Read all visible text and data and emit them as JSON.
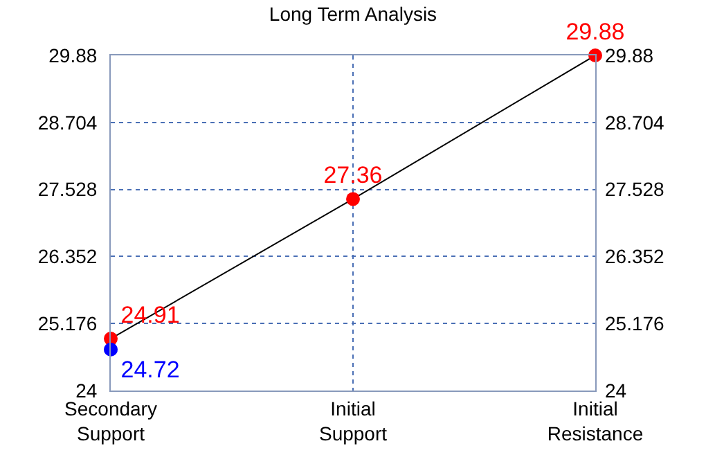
{
  "chart_data": {
    "type": "line",
    "title": "Long Term Analysis",
    "categories": [
      "Secondary Support",
      "Initial Support",
      "Initial Resistance"
    ],
    "series": [
      {
        "color": "#000000",
        "values": [
          24.91,
          27.36,
          29.88
        ],
        "marker": "none"
      },
      {
        "type": "scatter",
        "color": "#ff0000",
        "values": [
          24.91,
          27.36,
          29.88
        ],
        "marker": "circle",
        "value_labels": [
          "24.91",
          "27.36",
          "29.88"
        ]
      },
      {
        "type": "scatter",
        "color": "#0000ff",
        "values": [
          24.72,
          null,
          null
        ],
        "marker": "circle",
        "value_labels": [
          "24.72",
          null,
          null
        ]
      }
    ],
    "ylim": [
      24,
      29.88
    ],
    "yticks": [
      24,
      25.176,
      26.352,
      27.528,
      28.704,
      29.88
    ],
    "y2lim": [
      24,
      29.88
    ],
    "y2ticks": [
      24,
      25.176,
      26.352,
      27.528,
      28.704,
      29.88
    ],
    "grid": true
  }
}
